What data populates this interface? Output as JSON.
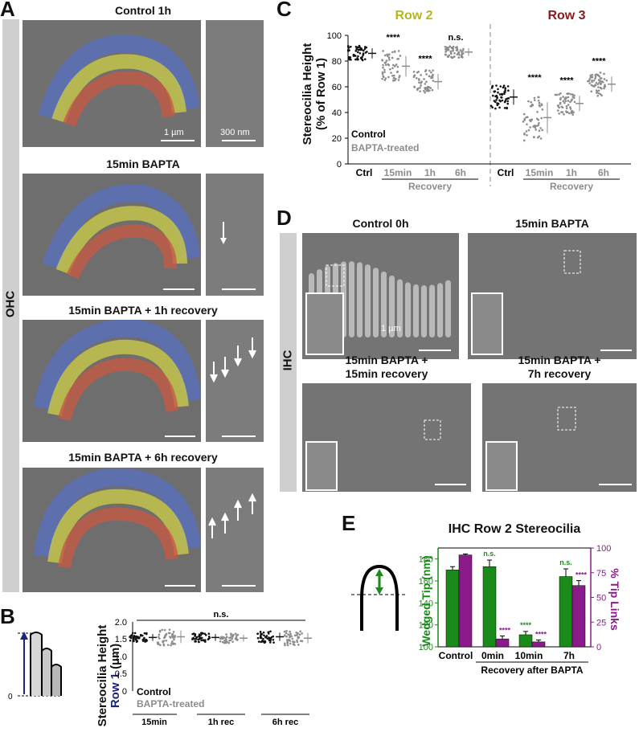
{
  "panels": {
    "A": {
      "letter": "A",
      "side_label": "OHC",
      "titles": [
        "Control 1h",
        "15min BAPTA",
        "15min BAPTA + 1h recovery",
        "15min BAPTA + 6h recovery"
      ],
      "scalebar_main": "1 µm",
      "scalebar_inset": "300 nm"
    },
    "B": {
      "letter": "B",
      "ylabel_line1": "Stereocilia Height",
      "ylabel_row": "Row 1",
      "ylabel_unit": "(µm)",
      "yticks": [
        "2.0",
        "1.5",
        "1.0",
        "0.5",
        "0"
      ],
      "signif": "n.s.",
      "groups": [
        "15min",
        "1h rec",
        "6h rec"
      ],
      "legend_control": "Control",
      "legend_bapta": "BAPTA-treated",
      "schematic_zero": "0"
    },
    "C": {
      "letter": "C",
      "row2_title": "Row 2",
      "row3_title": "Row 3",
      "ylabel_line1": "Stereocilia Height",
      "ylabel_line2": "(% of Row 1)",
      "yticks": [
        "100",
        "80",
        "60",
        "40",
        "20",
        "0"
      ],
      "xticks": [
        "Ctrl",
        "15min",
        "1h",
        "6h"
      ],
      "recovery_label": "Recovery",
      "legend_control": "Control",
      "legend_bapta": "BAPTA-treated",
      "signif_row2": [
        "****",
        "****",
        "n.s."
      ],
      "signif_row3": [
        "****",
        "****",
        "****"
      ]
    },
    "D": {
      "letter": "D",
      "side_label": "IHC",
      "titles": [
        "Control 0h",
        "15min BAPTA"
      ],
      "titles_bottom_left": [
        "15min BAPTA +",
        "15min recovery"
      ],
      "titles_bottom_right": [
        "15min BAPTA +",
        "7h recovery"
      ],
      "scalebar": "1 µm"
    },
    "E": {
      "letter": "E",
      "title": "IHC Row 2 Stereocilia",
      "ylabel_left": "Wedged Tip (nm)",
      "ylabel_right": "% Tip Links",
      "yticks_left": [
        "180",
        "160",
        "140",
        "120",
        "100"
      ],
      "yticks_right": [
        "100",
        "75",
        "50",
        "25",
        "0"
      ],
      "xticks": [
        "Control",
        "0min",
        "10min",
        "7h"
      ],
      "xlabel": "Recovery after BAPTA",
      "signif_green": [
        "n.s.",
        "****",
        "n.s."
      ],
      "signif_purple": [
        "****",
        "****",
        "****"
      ]
    }
  },
  "chart_data": [
    {
      "type": "scatter",
      "panel": "B",
      "ylabel": "Stereocilia Height Row 1 (µm)",
      "ylim": [
        0,
        2.0
      ],
      "categories": [
        "15min",
        "1h rec",
        "6h rec"
      ],
      "series": [
        {
          "name": "Control",
          "means": [
            1.55,
            1.55,
            1.57
          ],
          "sd": [
            0.1,
            0.1,
            0.12
          ]
        },
        {
          "name": "BAPTA-treated",
          "means": [
            1.57,
            1.53,
            1.53
          ],
          "sd": [
            0.18,
            0.1,
            0.15
          ]
        }
      ],
      "colors": {
        "control": "#111111",
        "bapta": "#8c8c8c"
      }
    },
    {
      "type": "scatter",
      "panel": "C",
      "ylabel": "Stereocilia Height (% of Row 1)",
      "ylim": [
        0,
        100
      ],
      "categories": [
        "Ctrl",
        "15min",
        "1h",
        "6h"
      ],
      "series": [
        {
          "name": "Row 2",
          "means": [
            86,
            76,
            64,
            87
          ],
          "sd": [
            4,
            8,
            6,
            3
          ]
        },
        {
          "name": "Row 3",
          "means": [
            52,
            36,
            47,
            62
          ],
          "sd": [
            6,
            12,
            6,
            6
          ]
        }
      ],
      "colors": {
        "control": "#111111",
        "bapta": "#8c8c8c",
        "row2": "#b5b520",
        "row3": "#8b1a1a"
      }
    },
    {
      "type": "bar",
      "panel": "E",
      "categories": [
        "Control",
        "0min",
        "10min",
        "7h"
      ],
      "series": [
        {
          "name": "Wedged Tip (nm)",
          "axis": "left",
          "values": [
            170,
            173,
            111,
            164
          ],
          "err": [
            3,
            6,
            3,
            7
          ]
        },
        {
          "name": "% Tip Links",
          "axis": "right",
          "values": [
            93,
            8,
            5,
            62
          ],
          "err": [
            1,
            3,
            2,
            5
          ]
        }
      ],
      "ylim_left": [
        100,
        190
      ],
      "ylim_right": [
        0,
        100
      ],
      "colors": {
        "green": "#1a8a1a",
        "purple": "#8b1a8b"
      }
    }
  ]
}
